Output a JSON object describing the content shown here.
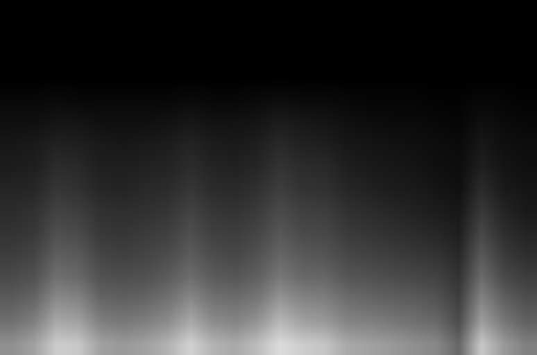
{
  "chart_data": {
    "type": "heatmap",
    "tick_labels": false,
    "zlim": [
      0,
      100
    ],
    "cells": [
      [
        56,
        63,
        80,
        78,
        63,
        60,
        63,
        70,
        82,
        70,
        66,
        74,
        86,
        80,
        77,
        66,
        63,
        60,
        56,
        53,
        40,
        78,
        60,
        50
      ],
      [
        44,
        50,
        66,
        63,
        50,
        47,
        50,
        55,
        66,
        55,
        52,
        58,
        72,
        63,
        60,
        52,
        50,
        47,
        44,
        41,
        30,
        62,
        47,
        38
      ],
      [
        36,
        40,
        55,
        52,
        40,
        38,
        40,
        45,
        54,
        45,
        43,
        47,
        59,
        52,
        50,
        43,
        40,
        38,
        36,
        33,
        25,
        52,
        38,
        31
      ],
      [
        29,
        32,
        44,
        41,
        32,
        31,
        32,
        36,
        43,
        36,
        34,
        38,
        47,
        41,
        40,
        34,
        32,
        30,
        28,
        26,
        20,
        42,
        29,
        24
      ],
      [
        24,
        27,
        37,
        35,
        27,
        25,
        27,
        30,
        36,
        30,
        28,
        32,
        40,
        35,
        33,
        28,
        26,
        24,
        22,
        20,
        16,
        35,
        23,
        18
      ],
      [
        20,
        22,
        31,
        29,
        22,
        21,
        23,
        25,
        31,
        25,
        24,
        27,
        34,
        29,
        28,
        23,
        21,
        19,
        17,
        15,
        12,
        28,
        18,
        14
      ],
      [
        17,
        19,
        26,
        24,
        19,
        18,
        19,
        21,
        26,
        21,
        20,
        23,
        29,
        25,
        24,
        19,
        17,
        15,
        13,
        11,
        9,
        22,
        14,
        10
      ],
      [
        14,
        15,
        21,
        19,
        15,
        14,
        16,
        17,
        21,
        17,
        16,
        19,
        24,
        20,
        19,
        15,
        13,
        11,
        10,
        8,
        6,
        17,
        10,
        8
      ],
      [
        11,
        12,
        17,
        16,
        12,
        12,
        13,
        14,
        17,
        14,
        13,
        15,
        20,
        17,
        16,
        12,
        10,
        9,
        8,
        6,
        5,
        12,
        8,
        6
      ],
      [
        9,
        10,
        13,
        12,
        10,
        9,
        10,
        11,
        14,
        11,
        10,
        12,
        16,
        13,
        12,
        9,
        8,
        7,
        6,
        5,
        4,
        9,
        6,
        5
      ],
      [
        6,
        6,
        8,
        8,
        6,
        6,
        6,
        7,
        9,
        7,
        7,
        8,
        11,
        9,
        8,
        6,
        5,
        4,
        4,
        3,
        2,
        6,
        4,
        3
      ],
      [
        3,
        3,
        4,
        3,
        3,
        3,
        3,
        3,
        4,
        3,
        3,
        4,
        5,
        4,
        4,
        3,
        2,
        2,
        2,
        1,
        1,
        3,
        2,
        1
      ],
      [
        0,
        0,
        0,
        0,
        0,
        0,
        0,
        0,
        0,
        0,
        0,
        0,
        0,
        0,
        0,
        0,
        0,
        0,
        0,
        0,
        0,
        0,
        0,
        0
      ],
      [
        0,
        0,
        0,
        0,
        0,
        0,
        0,
        0,
        0,
        0,
        0,
        0,
        0,
        0,
        0,
        0,
        0,
        0,
        0,
        0,
        0,
        0,
        0,
        0
      ],
      [
        0,
        0,
        0,
        0,
        0,
        0,
        0,
        0,
        0,
        0,
        0,
        0,
        0,
        0,
        0,
        0,
        0,
        0,
        0,
        0,
        0,
        0,
        0,
        0
      ],
      [
        0,
        0,
        0,
        0,
        0,
        0,
        0,
        0,
        0,
        0,
        0,
        0,
        0,
        0,
        0,
        0,
        0,
        0,
        0,
        0,
        0,
        0,
        0,
        0
      ]
    ]
  }
}
